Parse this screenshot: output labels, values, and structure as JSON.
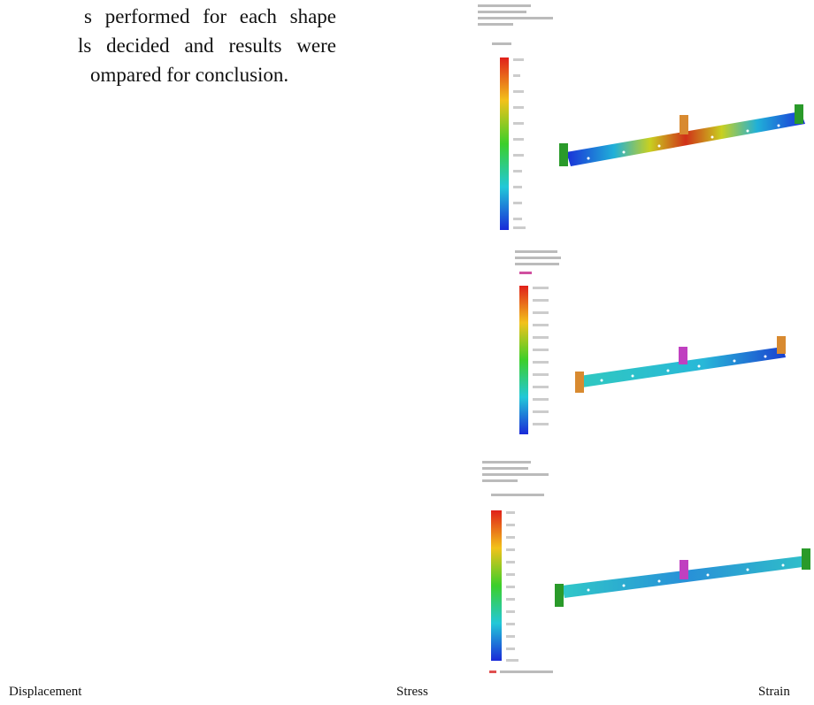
{
  "paragraph": {
    "lines": [
      "s performed for each shape",
      "ls decided and results were",
      "ompared for conclusion."
    ]
  },
  "captions": [
    "Displacement",
    "Stress",
    "Strain"
  ]
}
